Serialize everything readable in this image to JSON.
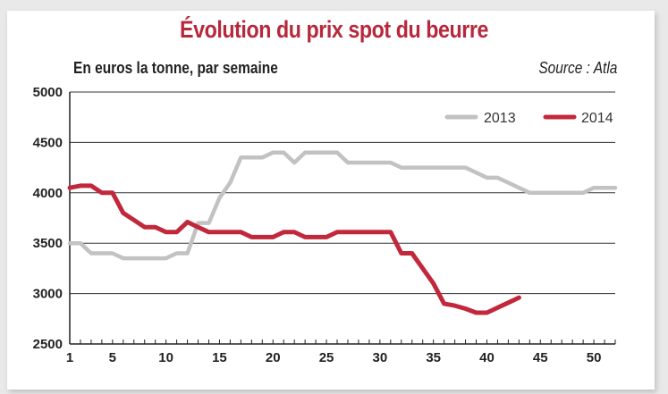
{
  "chart_data": {
    "type": "line",
    "title": "Évolution du prix spot du beurre",
    "subtitle": "En euros la tonne, par semaine",
    "source": "Source : Atla",
    "xlabel": "",
    "ylabel": "",
    "xlim": [
      1,
      52
    ],
    "ylim": [
      2500,
      5000
    ],
    "x_ticks": [
      1,
      5,
      10,
      15,
      20,
      25,
      30,
      35,
      40,
      45,
      50
    ],
    "y_ticks": [
      2500,
      3000,
      3500,
      4000,
      4500,
      5000
    ],
    "grid": "horizontal",
    "legend_position": "top-right",
    "series": [
      {
        "name": "2013",
        "color": "#c2c2c2",
        "x": [
          1,
          2,
          3,
          4,
          5,
          6,
          7,
          8,
          9,
          10,
          11,
          12,
          13,
          14,
          15,
          16,
          17,
          18,
          19,
          20,
          21,
          22,
          23,
          24,
          25,
          26,
          27,
          28,
          29,
          30,
          31,
          32,
          33,
          34,
          35,
          36,
          37,
          38,
          39,
          40,
          41,
          42,
          43,
          44,
          45,
          46,
          47,
          48,
          49,
          50,
          51,
          52
        ],
        "values": [
          3500,
          3500,
          3400,
          3400,
          3400,
          3350,
          3350,
          3350,
          3350,
          3350,
          3400,
          3400,
          3700,
          3700,
          3950,
          4100,
          4350,
          4350,
          4350,
          4400,
          4400,
          4300,
          4400,
          4400,
          4400,
          4400,
          4300,
          4300,
          4300,
          4300,
          4300,
          4250,
          4250,
          4250,
          4250,
          4250,
          4250,
          4250,
          4200,
          4150,
          4150,
          4100,
          4050,
          4000,
          4000,
          4000,
          4000,
          4000,
          4000,
          4050,
          4050,
          4050
        ]
      },
      {
        "name": "2014",
        "color": "#c1283b",
        "x": [
          1,
          2,
          3,
          4,
          5,
          6,
          7,
          8,
          9,
          10,
          11,
          12,
          13,
          14,
          15,
          16,
          17,
          18,
          19,
          20,
          21,
          22,
          23,
          24,
          25,
          26,
          27,
          28,
          29,
          30,
          31,
          32,
          33,
          34,
          35,
          36,
          37,
          38,
          39,
          40,
          41,
          42,
          43
        ],
        "values": [
          4050,
          4070,
          4070,
          4000,
          4000,
          3800,
          3730,
          3660,
          3660,
          3610,
          3610,
          3710,
          3660,
          3610,
          3610,
          3610,
          3610,
          3560,
          3560,
          3560,
          3610,
          3610,
          3560,
          3560,
          3560,
          3610,
          3610,
          3610,
          3610,
          3610,
          3610,
          3400,
          3400,
          3250,
          3100,
          2900,
          2880,
          2850,
          2810,
          2810,
          2860,
          2910,
          2960
        ]
      }
    ]
  }
}
